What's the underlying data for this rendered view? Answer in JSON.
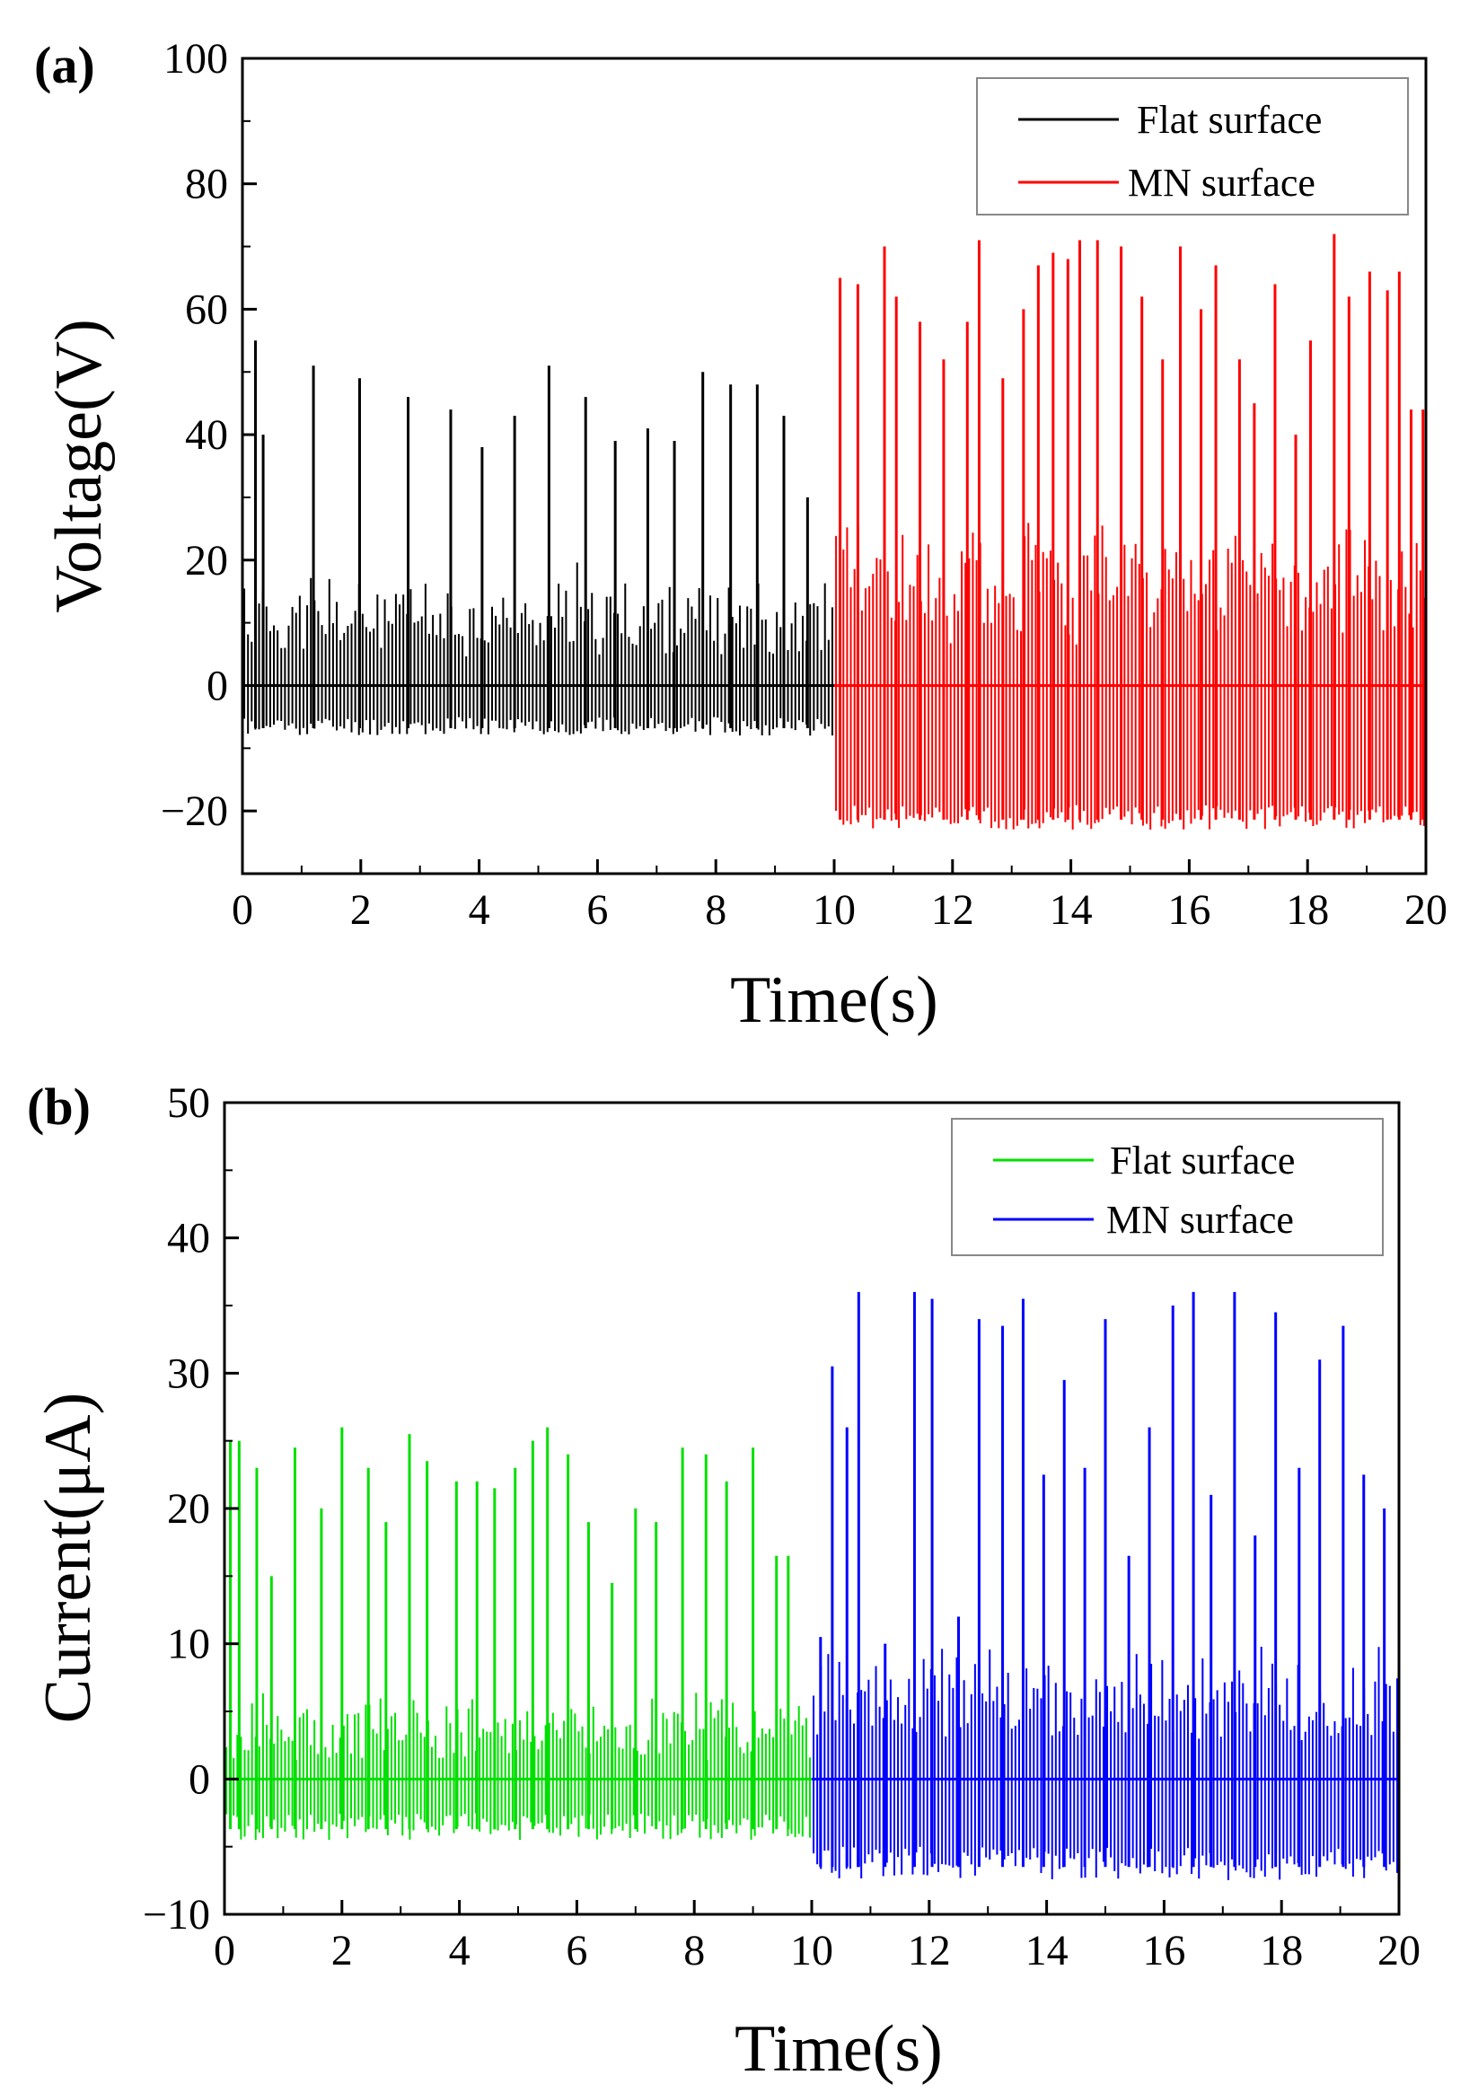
{
  "chart_data": [
    {
      "panel_label": "(a)",
      "type": "line",
      "xlabel": "Time(s)",
      "ylabel": "Voltage(V)",
      "xlim": [
        0,
        20
      ],
      "ylim": [
        -30,
        100
      ],
      "x_ticks": [
        0,
        2,
        4,
        6,
        8,
        10,
        12,
        14,
        16,
        18,
        20
      ],
      "x_tick_labels": [
        "0",
        "2",
        "4",
        "6",
        "8",
        "10",
        "12",
        "14",
        "16",
        "18",
        "20"
      ],
      "y_ticks": [
        -20,
        0,
        20,
        40,
        60,
        80,
        100
      ],
      "y_tick_labels": [
        "−20",
        "0",
        "20",
        "40",
        "60",
        "80",
        "100"
      ],
      "grid": false,
      "legend_position": "top-right",
      "series": [
        {
          "name": "Flat surface",
          "color": "#000000",
          "time_range": [
            0,
            10
          ],
          "peak_times": [
            0.22,
            0.35,
            1.2,
            1.98,
            2.8,
            3.52,
            4.05,
            4.6,
            5.18,
            5.8,
            6.3,
            6.85,
            7.3,
            7.78,
            8.25,
            8.7,
            9.15,
            9.55
          ],
          "peak_values": [
            55,
            40,
            51,
            49,
            46,
            44,
            38,
            43,
            51,
            46,
            39,
            41,
            39,
            50,
            48,
            48,
            43,
            30
          ],
          "minor_peak_values": [
            20,
            15,
            14,
            13,
            15,
            20,
            13,
            16,
            15,
            17,
            14,
            16,
            15,
            17,
            14,
            16,
            15,
            14
          ],
          "negative_trough_range": [
            -8,
            -5
          ]
        },
        {
          "name": "MN surface",
          "color": "#ff0000",
          "time_range": [
            10,
            20
          ],
          "peak_times": [
            10.1,
            10.4,
            10.85,
            11.05,
            11.45,
            11.85,
            12.25,
            12.45,
            12.85,
            13.2,
            13.45,
            13.7,
            13.95,
            14.15,
            14.45,
            14.85,
            15.2,
            15.55,
            15.85,
            16.2,
            16.45,
            16.85,
            17.1,
            17.45,
            17.8,
            18.05,
            18.45,
            18.7,
            19.05,
            19.35,
            19.55,
            19.75,
            19.95
          ],
          "peak_values": [
            65,
            64,
            70,
            62,
            58,
            52,
            58,
            71,
            49,
            60,
            67,
            69,
            68,
            71,
            71,
            70,
            62,
            52,
            70,
            60,
            67,
            52,
            45,
            64,
            40,
            55,
            72,
            62,
            66,
            63,
            66,
            44,
            44
          ],
          "minor_peak_values": [
            25,
            26,
            24,
            27,
            25,
            23,
            26,
            25,
            22,
            24,
            26,
            25,
            24,
            27,
            26,
            25,
            24,
            23,
            25,
            26,
            24,
            23,
            22,
            25,
            24,
            23,
            26,
            25,
            24,
            22,
            23,
            18,
            15
          ],
          "negative_trough_range": [
            -23,
            -19
          ]
        }
      ]
    },
    {
      "panel_label": "(b)",
      "type": "line",
      "xlabel": "Time(s)",
      "ylabel": "Current(μA)",
      "xlim": [
        0,
        20
      ],
      "ylim": [
        -10,
        50
      ],
      "x_ticks": [
        0,
        2,
        4,
        6,
        8,
        10,
        12,
        14,
        16,
        18,
        20
      ],
      "x_tick_labels": [
        "0",
        "2",
        "4",
        "6",
        "8",
        "10",
        "12",
        "14",
        "16",
        "18",
        "20"
      ],
      "y_ticks": [
        -10,
        0,
        10,
        20,
        30,
        40,
        50
      ],
      "y_tick_labels": [
        "−10",
        "0",
        "10",
        "20",
        "30",
        "40",
        "50"
      ],
      "grid": false,
      "legend_position": "top-right",
      "series": [
        {
          "name": "Flat surface",
          "color": "#00e000",
          "time_range": [
            0,
            10
          ],
          "peak_times": [
            0.1,
            0.25,
            0.55,
            0.8,
            1.2,
            1.65,
            2.0,
            2.45,
            2.75,
            3.15,
            3.45,
            3.95,
            4.3,
            4.6,
            4.95,
            5.25,
            5.5,
            5.85,
            6.2,
            6.6,
            7.0,
            7.35,
            7.8,
            8.2,
            8.55,
            9.0,
            9.4,
            9.6
          ],
          "peak_values": [
            25,
            25,
            23,
            15,
            24.5,
            20,
            26,
            23,
            19,
            25.5,
            23.5,
            22,
            22,
            21.5,
            23,
            25,
            26,
            24,
            19,
            14.5,
            20,
            19,
            24.5,
            24,
            22,
            24.5,
            16.5,
            16.5
          ],
          "minor_peak_values": [
            4,
            5,
            3,
            4,
            6,
            5,
            4,
            6,
            5,
            4,
            7,
            6,
            5,
            4,
            6,
            5,
            7,
            6,
            5,
            4,
            6,
            5,
            7,
            6,
            5,
            4,
            6,
            5
          ],
          "negative_trough_range": [
            -4.5,
            -2.5
          ]
        },
        {
          "name": "MN surface",
          "color": "#0000ff",
          "time_range": [
            10,
            20
          ],
          "peak_times": [
            10.15,
            10.35,
            10.6,
            10.8,
            11.25,
            11.75,
            12.05,
            12.5,
            12.85,
            13.25,
            13.6,
            13.95,
            14.3,
            14.65,
            15.0,
            15.4,
            15.75,
            16.15,
            16.5,
            16.8,
            17.2,
            17.55,
            17.9,
            18.3,
            18.65,
            19.05,
            19.4,
            19.75
          ],
          "peak_values": [
            10.5,
            30.5,
            26,
            36,
            10,
            36,
            35.5,
            12,
            34,
            33.5,
            35.5,
            22.5,
            29.5,
            23,
            34,
            16.5,
            26,
            35,
            36,
            21,
            36,
            18,
            34.5,
            23,
            31,
            33.5,
            22.5,
            20
          ],
          "minor_peak_values": [
            8,
            7,
            9,
            8,
            10,
            9,
            8,
            10,
            9,
            8,
            10,
            9,
            8,
            9,
            10,
            8,
            9,
            10,
            8,
            9,
            10,
            8,
            9,
            8,
            7,
            9,
            8,
            7
          ],
          "negative_trough_range": [
            -7.5,
            -5
          ]
        }
      ]
    }
  ]
}
